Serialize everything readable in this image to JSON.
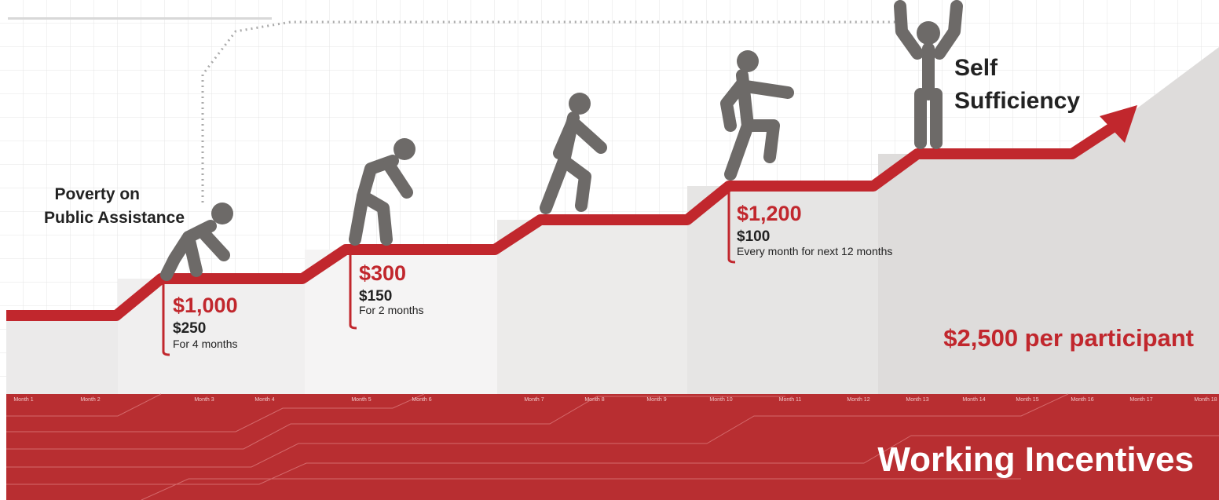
{
  "start": {
    "lines": [
      "Poverty on",
      "Public Assistance"
    ]
  },
  "goal": {
    "lines": [
      "Self",
      "Sufficiency"
    ]
  },
  "steps": [
    {
      "bonus": "$1,000",
      "monthly": "$250",
      "duration": "For 4 months"
    },
    {
      "bonus": "$300",
      "monthly": "$150",
      "duration": "For 2 months"
    },
    {
      "bonus": "$1,200",
      "monthly": "$100",
      "duration": "Every month for next 12 months"
    }
  ],
  "total": "$2,500 per participant",
  "banner": "Working Incentives",
  "months": [
    "Month 1",
    "Month 2",
    "Month 3",
    "Month 4",
    "Month 5",
    "Month 6",
    "Month 7",
    "Month 8",
    "Month 9",
    "Month 10",
    "Month 11",
    "Month 12",
    "Month 13",
    "Month 14",
    "Month 15",
    "Month 16",
    "Month 17",
    "Month 18"
  ]
}
